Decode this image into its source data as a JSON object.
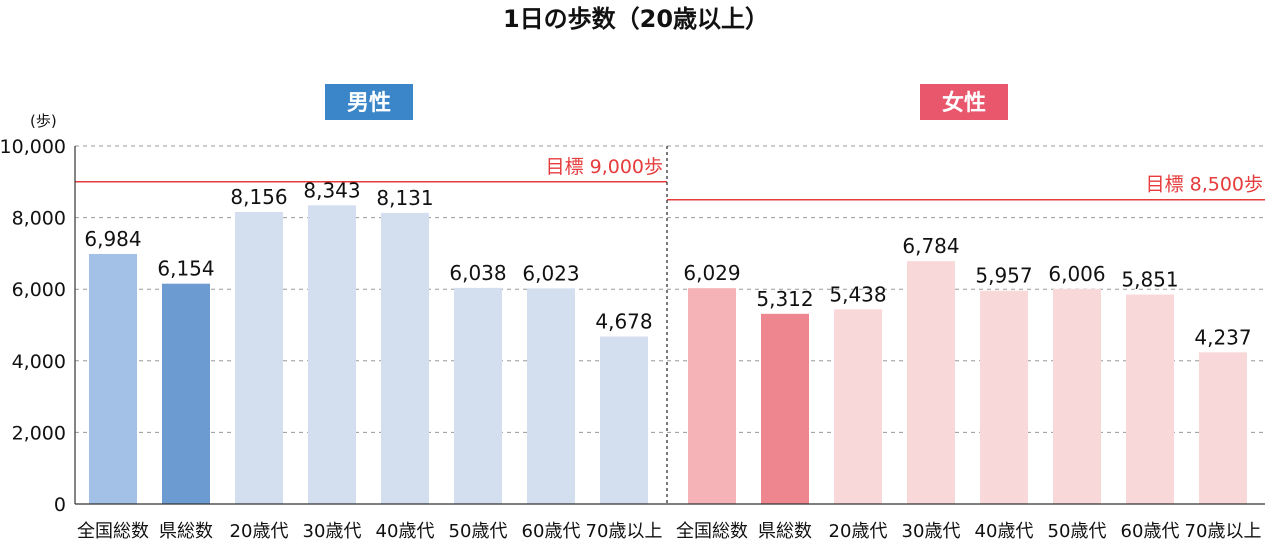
{
  "title": "1日の歩数（20歳以上）",
  "y_unit": "(歩)",
  "colors": {
    "target_line": "#e63c3c",
    "grid": "#999999",
    "axis": "#333333",
    "male_badge": "#3a86c8",
    "female_badge": "#e8576c"
  },
  "chart_data": [
    {
      "type": "bar",
      "group": "男性",
      "categories": [
        "全国総数",
        "県総数",
        "20歳代",
        "30歳代",
        "40歳代",
        "50歳代",
        "60歳代",
        "70歳以上"
      ],
      "values": [
        6984,
        6154,
        8156,
        8343,
        8131,
        6038,
        6023,
        4678
      ],
      "value_labels": [
        "6,984",
        "6,154",
        "8,156",
        "8,343",
        "8,131",
        "6,038",
        "6,023",
        "4,678"
      ],
      "bar_colors": [
        "#a3c1e6",
        "#6b9bd0",
        "#d3deef",
        "#d3deef",
        "#d3deef",
        "#d3deef",
        "#d3deef",
        "#d3deef"
      ],
      "target": {
        "value": 9000,
        "label": "目標 9,000歩"
      },
      "ylim": [
        0,
        10000
      ],
      "yticks": [
        0,
        2000,
        4000,
        6000,
        8000,
        10000
      ],
      "ytick_labels": [
        "0",
        "2,000",
        "4,000",
        "6,000",
        "8,000",
        "10,000"
      ],
      "grid": true
    },
    {
      "type": "bar",
      "group": "女性",
      "categories": [
        "全国総数",
        "県総数",
        "20歳代",
        "30歳代",
        "40歳代",
        "50歳代",
        "60歳代",
        "70歳以上"
      ],
      "values": [
        6029,
        5312,
        5438,
        6784,
        5957,
        6006,
        5851,
        4237
      ],
      "value_labels": [
        "6,029",
        "5,312",
        "5,438",
        "6,784",
        "5,957",
        "6,006",
        "5,851",
        "4,237"
      ],
      "bar_colors": [
        "#f5b3b8",
        "#ee8690",
        "#f9d8d9",
        "#f9d8d9",
        "#f9d8d9",
        "#f9d8d9",
        "#f9d8d9",
        "#f9d8d9"
      ],
      "target": {
        "value": 8500,
        "label": "目標 8,500歩"
      },
      "ylim": [
        0,
        10000
      ],
      "grid": true
    }
  ]
}
